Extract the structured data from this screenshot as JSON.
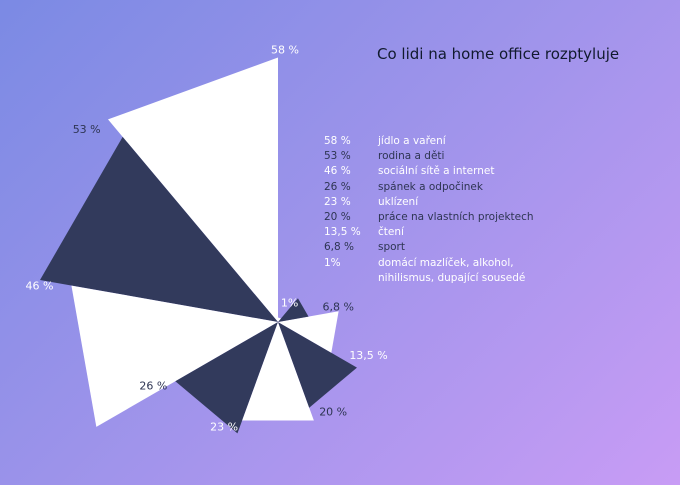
{
  "title": "Co lidi na home office rozptyluje",
  "colors": {
    "dark": "#323a5c",
    "light": "#ffffff",
    "text_dark": "#2e3553"
  },
  "chart_data": {
    "type": "pie",
    "title": "Co lidi na home office rozptyluje",
    "variant": "polar-area",
    "slices": [
      {
        "label": "58 %",
        "value": 58,
        "name": "jídlo a vaření",
        "color": "light"
      },
      {
        "label": "53 %",
        "value": 53,
        "name": "rodina a děti",
        "color": "dark"
      },
      {
        "label": "46 %",
        "value": 46,
        "name": "sociální sítě a internet",
        "color": "light"
      },
      {
        "label": "26 %",
        "value": 26,
        "name": "spánek a odpočinek",
        "color": "dark"
      },
      {
        "label": "23 %",
        "value": 23,
        "name": "uklízení",
        "color": "light"
      },
      {
        "label": "20 %",
        "value": 20,
        "name": "práce na vlastních projektech",
        "color": "dark"
      },
      {
        "label": "13,5 %",
        "value": 13.5,
        "name": "čtení",
        "color": "light"
      },
      {
        "label": "6,8 %",
        "value": 6.8,
        "name": "sport",
        "color": "dark"
      },
      {
        "label": "1%",
        "value": 1,
        "name": "domácí mazlíček, alkohol, nihilismus, dupající sousedé",
        "color": "light"
      }
    ]
  },
  "legend": [
    {
      "value": "58 %",
      "label": "jídlo a vaření",
      "style": "white"
    },
    {
      "value": "53 %",
      "label": "rodina a děti",
      "style": "dark"
    },
    {
      "value": "46 %",
      "label": "sociální sítě a internet",
      "style": "white"
    },
    {
      "value": "26 %",
      "label": "spánek a odpočinek",
      "style": "dark"
    },
    {
      "value": "23 %",
      "label": "uklízení",
      "style": "white"
    },
    {
      "value": "20 %",
      "label": "práce na vlastních projektech",
      "style": "dark"
    },
    {
      "value": "13,5 %",
      "label": "čtení",
      "style": "white"
    },
    {
      "value": "6,8 %",
      "label": "sport",
      "style": "dark"
    },
    {
      "value": "1%",
      "label": "domácí mazlíček, alkohol, nihilismus, dupající sousedé",
      "style": "white"
    }
  ]
}
